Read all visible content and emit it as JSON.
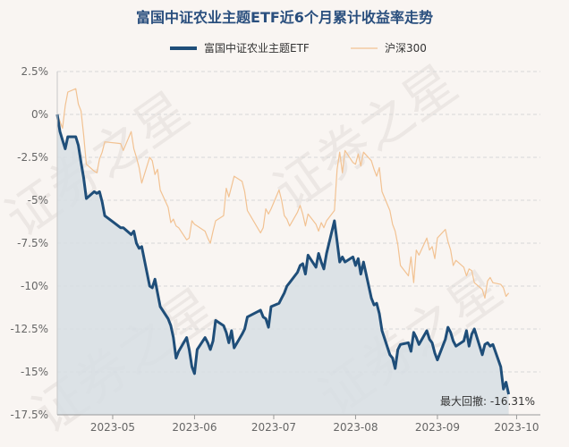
{
  "chart_data": {
    "type": "line",
    "title": "富国中证农业主题ETF近6个月累计收益率走势",
    "watermark": "证券之星",
    "y_unit": "%",
    "ylim": [
      -17.5,
      2.5
    ],
    "y_ticks": [
      2.5,
      0,
      -2.5,
      -5,
      -7.5,
      -10,
      -12.5,
      -15,
      -17.5
    ],
    "y_tick_labels": [
      "2.5%",
      "0%",
      "-2.5%",
      "-5%",
      "-7.5%",
      "-10%",
      "-12.5%",
      "-15%",
      "-17.5%"
    ],
    "x_range": [
      "2023-04-10",
      "2023-10-10"
    ],
    "x_ticks": [
      "2023-05-01",
      "2023-06-01",
      "2023-07-01",
      "2023-08-01",
      "2023-09-01",
      "2023-10-01"
    ],
    "x_tick_labels": [
      "2023-05",
      "2023-06",
      "2023-07",
      "2023-08",
      "2023-09",
      "2023-10"
    ],
    "grid": "horizontal dashed",
    "legend_position": "top",
    "annotation": "最大回撤: -16.31%",
    "series": [
      {
        "name": "富国中证农业主题ETF",
        "color": "#1f4e79",
        "area_fill": "#d7dee4",
        "points": [
          [
            "2023-04-10",
            0
          ],
          [
            "2023-04-11",
            -1
          ],
          [
            "2023-04-12",
            -1.5
          ],
          [
            "2023-04-13",
            -2
          ],
          [
            "2023-04-14",
            -1.3
          ],
          [
            "2023-04-17",
            -1.3
          ],
          [
            "2023-04-18",
            -1.8
          ],
          [
            "2023-04-19",
            -2.8
          ],
          [
            "2023-04-20",
            -3.7
          ],
          [
            "2023-04-21",
            -4.9
          ],
          [
            "2023-04-24",
            -4.5
          ],
          [
            "2023-04-25",
            -4.6
          ],
          [
            "2023-04-26",
            -4.5
          ],
          [
            "2023-04-27",
            -5.1
          ],
          [
            "2023-04-28",
            -5.9
          ],
          [
            "2023-05-04",
            -6.6
          ],
          [
            "2023-05-05",
            -6.6
          ],
          [
            "2023-05-08",
            -7
          ],
          [
            "2023-05-09",
            -6.8
          ],
          [
            "2023-05-10",
            -7.5
          ],
          [
            "2023-05-11",
            -7.8
          ],
          [
            "2023-05-12",
            -7.7
          ],
          [
            "2023-05-15",
            -10
          ],
          [
            "2023-05-16",
            -10.1
          ],
          [
            "2023-05-17",
            -9.6
          ],
          [
            "2023-05-18",
            -10.4
          ],
          [
            "2023-05-19",
            -11.2
          ],
          [
            "2023-05-22",
            -11.9
          ],
          [
            "2023-05-23",
            -12.3
          ],
          [
            "2023-05-24",
            -13
          ],
          [
            "2023-05-25",
            -14.2
          ],
          [
            "2023-05-26",
            -13.8
          ],
          [
            "2023-05-29",
            -13
          ],
          [
            "2023-05-30",
            -13.7
          ],
          [
            "2023-05-31",
            -14.7
          ],
          [
            "2023-06-01",
            -15.1
          ],
          [
            "2023-06-02",
            -13.7
          ],
          [
            "2023-06-05",
            -13
          ],
          [
            "2023-06-06",
            -13.3
          ],
          [
            "2023-06-07",
            -13.7
          ],
          [
            "2023-06-08",
            -13.2
          ],
          [
            "2023-06-09",
            -12
          ],
          [
            "2023-06-12",
            -12.3
          ],
          [
            "2023-06-13",
            -12.7
          ],
          [
            "2023-06-14",
            -13.3
          ],
          [
            "2023-06-15",
            -12.6
          ],
          [
            "2023-06-16",
            -13.6
          ],
          [
            "2023-06-19",
            -12.8
          ],
          [
            "2023-06-20",
            -12.5
          ],
          [
            "2023-06-21",
            -11.8
          ],
          [
            "2023-06-26",
            -11.4
          ],
          [
            "2023-06-27",
            -11.8
          ],
          [
            "2023-06-28",
            -11.9
          ],
          [
            "2023-06-29",
            -12.4
          ],
          [
            "2023-06-30",
            -11.2
          ],
          [
            "2023-07-03",
            -11
          ],
          [
            "2023-07-04",
            -10.7
          ],
          [
            "2023-07-05",
            -10.4
          ],
          [
            "2023-07-06",
            -10
          ],
          [
            "2023-07-07",
            -9.8
          ],
          [
            "2023-07-10",
            -9.2
          ],
          [
            "2023-07-11",
            -8.8
          ],
          [
            "2023-07-12",
            -8.7
          ],
          [
            "2023-07-13",
            -9.3
          ],
          [
            "2023-07-14",
            -8.2
          ],
          [
            "2023-07-17",
            -8.9
          ],
          [
            "2023-07-18",
            -8.1
          ],
          [
            "2023-07-19",
            -8.6
          ],
          [
            "2023-07-20",
            -9
          ],
          [
            "2023-07-21",
            -8.1
          ],
          [
            "2023-07-24",
            -6.2
          ],
          [
            "2023-07-25",
            -7.4
          ],
          [
            "2023-07-26",
            -8.6
          ],
          [
            "2023-07-27",
            -8.3
          ],
          [
            "2023-07-28",
            -8.6
          ],
          [
            "2023-07-31",
            -8.3
          ],
          [
            "2023-08-01",
            -8.8
          ],
          [
            "2023-08-02",
            -8.4
          ],
          [
            "2023-08-03",
            -9.3
          ],
          [
            "2023-08-04",
            -8.6
          ],
          [
            "2023-08-07",
            -10.7
          ],
          [
            "2023-08-08",
            -11.1
          ],
          [
            "2023-08-09",
            -11
          ],
          [
            "2023-08-10",
            -11.6
          ],
          [
            "2023-08-11",
            -12.6
          ],
          [
            "2023-08-14",
            -14
          ],
          [
            "2023-08-15",
            -14.2
          ],
          [
            "2023-08-16",
            -14.8
          ],
          [
            "2023-08-17",
            -13.7
          ],
          [
            "2023-08-18",
            -13.4
          ],
          [
            "2023-08-21",
            -13.3
          ],
          [
            "2023-08-22",
            -13.8
          ],
          [
            "2023-08-23",
            -12.7
          ],
          [
            "2023-08-24",
            -13
          ],
          [
            "2023-08-25",
            -13.4
          ],
          [
            "2023-08-28",
            -12.6
          ],
          [
            "2023-08-29",
            -13.1
          ],
          [
            "2023-08-30",
            -13.3
          ],
          [
            "2023-08-31",
            -13.9
          ],
          [
            "2023-09-01",
            -14.3
          ],
          [
            "2023-09-04",
            -13.1
          ],
          [
            "2023-09-05",
            -12.4
          ],
          [
            "2023-09-06",
            -12.7
          ],
          [
            "2023-09-07",
            -13.2
          ],
          [
            "2023-09-08",
            -13.5
          ],
          [
            "2023-09-11",
            -13.2
          ],
          [
            "2023-09-12",
            -12.6
          ],
          [
            "2023-09-13",
            -13.5
          ],
          [
            "2023-09-14",
            -12.8
          ],
          [
            "2023-09-15",
            -12.5
          ],
          [
            "2023-09-18",
            -14
          ],
          [
            "2023-09-19",
            -13.4
          ],
          [
            "2023-09-20",
            -13.3
          ],
          [
            "2023-09-21",
            -13.5
          ],
          [
            "2023-09-22",
            -13.4
          ],
          [
            "2023-09-25",
            -14.7
          ],
          [
            "2023-09-26",
            -16
          ],
          [
            "2023-09-27",
            -15.6
          ],
          [
            "2023-09-28",
            -16.3
          ]
        ]
      },
      {
        "name": "沪深300",
        "color": "#f2c292",
        "points": [
          [
            "2023-04-10",
            0
          ],
          [
            "2023-04-11",
            -0.4
          ],
          [
            "2023-04-12",
            -0.8
          ],
          [
            "2023-04-13",
            0.5
          ],
          [
            "2023-04-14",
            1.3
          ],
          [
            "2023-04-17",
            1.5
          ],
          [
            "2023-04-18",
            0.6
          ],
          [
            "2023-04-19",
            0.2
          ],
          [
            "2023-04-20",
            -1.2
          ],
          [
            "2023-04-21",
            -2.9
          ],
          [
            "2023-04-24",
            -3.3
          ],
          [
            "2023-04-25",
            -3.4
          ],
          [
            "2023-04-26",
            -2.6
          ],
          [
            "2023-04-27",
            -2.2
          ],
          [
            "2023-04-28",
            -1.6
          ],
          [
            "2023-05-04",
            -1.7
          ],
          [
            "2023-05-05",
            -2.1
          ],
          [
            "2023-05-08",
            -1
          ],
          [
            "2023-05-09",
            -2
          ],
          [
            "2023-05-10",
            -2.5
          ],
          [
            "2023-05-11",
            -3.1
          ],
          [
            "2023-05-12",
            -4
          ],
          [
            "2023-05-15",
            -2.5
          ],
          [
            "2023-05-16",
            -2.7
          ],
          [
            "2023-05-17",
            -3.5
          ],
          [
            "2023-05-18",
            -3.2
          ],
          [
            "2023-05-19",
            -4.4
          ],
          [
            "2023-05-22",
            -5.4
          ],
          [
            "2023-05-23",
            -6.3
          ],
          [
            "2023-05-24",
            -6.1
          ],
          [
            "2023-05-25",
            -6.5
          ],
          [
            "2023-05-26",
            -6.6
          ],
          [
            "2023-05-29",
            -7.3
          ],
          [
            "2023-05-30",
            -7.2
          ],
          [
            "2023-05-31",
            -6.2
          ],
          [
            "2023-06-01",
            -6.4
          ],
          [
            "2023-06-02",
            -6.5
          ],
          [
            "2023-06-05",
            -6.8
          ],
          [
            "2023-06-06",
            -7.2
          ],
          [
            "2023-06-07",
            -7.5
          ],
          [
            "2023-06-08",
            -6.8
          ],
          [
            "2023-06-09",
            -6.2
          ],
          [
            "2023-06-12",
            -5.9
          ],
          [
            "2023-06-13",
            -4.3
          ],
          [
            "2023-06-14",
            -4.8
          ],
          [
            "2023-06-15",
            -4.2
          ],
          [
            "2023-06-16",
            -3.6
          ],
          [
            "2023-06-19",
            -3.9
          ],
          [
            "2023-06-20",
            -4.5
          ],
          [
            "2023-06-21",
            -5.6
          ],
          [
            "2023-06-26",
            -6.9
          ],
          [
            "2023-06-27",
            -6.6
          ],
          [
            "2023-06-28",
            -5.5
          ],
          [
            "2023-06-29",
            -5.8
          ],
          [
            "2023-06-30",
            -5.5
          ],
          [
            "2023-07-03",
            -4.4
          ],
          [
            "2023-07-04",
            -5
          ],
          [
            "2023-07-05",
            -5.9
          ],
          [
            "2023-07-06",
            -6.1
          ],
          [
            "2023-07-07",
            -6.5
          ],
          [
            "2023-07-10",
            -5.7
          ],
          [
            "2023-07-11",
            -5.3
          ],
          [
            "2023-07-12",
            -5.8
          ],
          [
            "2023-07-13",
            -6.5
          ],
          [
            "2023-07-14",
            -5.8
          ],
          [
            "2023-07-17",
            -6.4
          ],
          [
            "2023-07-18",
            -6.8
          ],
          [
            "2023-07-19",
            -6.3
          ],
          [
            "2023-07-20",
            -6.6
          ],
          [
            "2023-07-21",
            -6.2
          ],
          [
            "2023-07-24",
            -5.6
          ],
          [
            "2023-07-25",
            -3.2
          ],
          [
            "2023-07-26",
            -2.2
          ],
          [
            "2023-07-27",
            -3.4
          ],
          [
            "2023-07-28",
            -2.1
          ],
          [
            "2023-07-31",
            -2.8
          ],
          [
            "2023-08-01",
            -2.9
          ],
          [
            "2023-08-02",
            -2.3
          ],
          [
            "2023-08-03",
            -3
          ],
          [
            "2023-08-04",
            -2.2
          ],
          [
            "2023-08-07",
            -2.7
          ],
          [
            "2023-08-08",
            -3.2
          ],
          [
            "2023-08-09",
            -3.6
          ],
          [
            "2023-08-10",
            -3.1
          ],
          [
            "2023-08-11",
            -4.5
          ],
          [
            "2023-08-14",
            -5.6
          ],
          [
            "2023-08-15",
            -6.4
          ],
          [
            "2023-08-16",
            -6.8
          ],
          [
            "2023-08-17",
            -7.6
          ],
          [
            "2023-08-18",
            -8.8
          ],
          [
            "2023-08-21",
            -9.4
          ],
          [
            "2023-08-22",
            -8.3
          ],
          [
            "2023-08-23",
            -9.8
          ],
          [
            "2023-08-24",
            -7.9
          ],
          [
            "2023-08-25",
            -8.2
          ],
          [
            "2023-08-28",
            -7.2
          ],
          [
            "2023-08-29",
            -7.9
          ],
          [
            "2023-08-30",
            -7.7
          ],
          [
            "2023-08-31",
            -8.4
          ],
          [
            "2023-09-01",
            -7.2
          ],
          [
            "2023-09-04",
            -6.7
          ],
          [
            "2023-09-05",
            -7.4
          ],
          [
            "2023-09-06",
            -7.9
          ],
          [
            "2023-09-07",
            -8.8
          ],
          [
            "2023-09-08",
            -8.5
          ],
          [
            "2023-09-11",
            -8.9
          ],
          [
            "2023-09-12",
            -9.4
          ],
          [
            "2023-09-13",
            -9
          ],
          [
            "2023-09-14",
            -9.1
          ],
          [
            "2023-09-15",
            -9.8
          ],
          [
            "2023-09-18",
            -10.2
          ],
          [
            "2023-09-19",
            -10.7
          ],
          [
            "2023-09-20",
            -9.7
          ],
          [
            "2023-09-21",
            -9.5
          ],
          [
            "2023-09-22",
            -9.8
          ],
          [
            "2023-09-25",
            -9.9
          ],
          [
            "2023-09-26",
            -10.1
          ],
          [
            "2023-09-27",
            -10.6
          ],
          [
            "2023-09-28",
            -10.4
          ]
        ]
      }
    ]
  }
}
